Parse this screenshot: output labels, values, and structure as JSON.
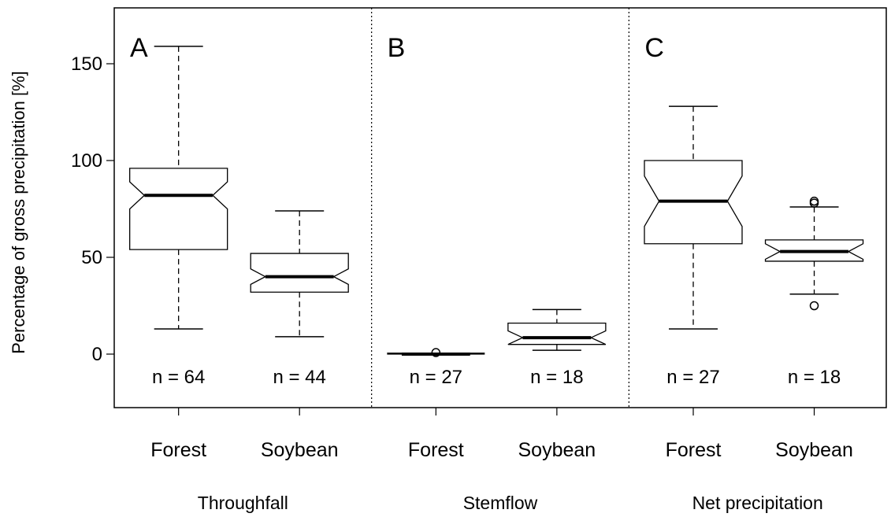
{
  "chart_data": {
    "type": "boxplot",
    "ylabel": "Percentage of gross precipitation [%]",
    "ylim": [
      -28,
      178
    ],
    "yticks": [
      0,
      50,
      100,
      150
    ],
    "notched": true,
    "grid": false,
    "legend": "none",
    "panels": [
      {
        "letter": "A",
        "group": "Throughfall",
        "boxes": [
          {
            "category": "Forest",
            "n_label": "n = 64",
            "whisker_low": 13,
            "q1": 54,
            "median": 82,
            "q3": 96,
            "whisker_high": 159,
            "notch_low": 75,
            "notch_high": 89,
            "outliers": []
          },
          {
            "category": "Soybean",
            "n_label": "n = 44",
            "whisker_low": 9,
            "q1": 32,
            "median": 40,
            "q3": 52,
            "whisker_high": 74,
            "notch_low": 36,
            "notch_high": 44,
            "outliers": []
          }
        ]
      },
      {
        "letter": "B",
        "group": "Stemflow",
        "boxes": [
          {
            "category": "Forest",
            "n_label": "n = 27",
            "whisker_low": 0,
            "q1": 0,
            "median": 0,
            "q3": 0.5,
            "whisker_high": 0.5,
            "notch_low": 0,
            "notch_high": 0.5,
            "outliers": [
              0.8
            ]
          },
          {
            "category": "Soybean",
            "n_label": "n = 18",
            "whisker_low": 2,
            "q1": 5,
            "median": 8.5,
            "q3": 16,
            "whisker_high": 23,
            "notch_low": 5,
            "notch_high": 12,
            "outliers": []
          }
        ]
      },
      {
        "letter": "C",
        "group": "Net precipitation",
        "boxes": [
          {
            "category": "Forest",
            "n_label": "n = 27",
            "whisker_low": 13,
            "q1": 57,
            "median": 79,
            "q3": 100,
            "whisker_high": 128,
            "notch_low": 66,
            "notch_high": 92,
            "outliers": []
          },
          {
            "category": "Soybean",
            "n_label": "n = 18",
            "whisker_low": 31,
            "q1": 48,
            "median": 53,
            "q3": 59,
            "whisker_high": 76,
            "notch_low": 49,
            "notch_high": 57,
            "outliers": [
              25,
              78,
              79
            ]
          }
        ]
      }
    ]
  }
}
